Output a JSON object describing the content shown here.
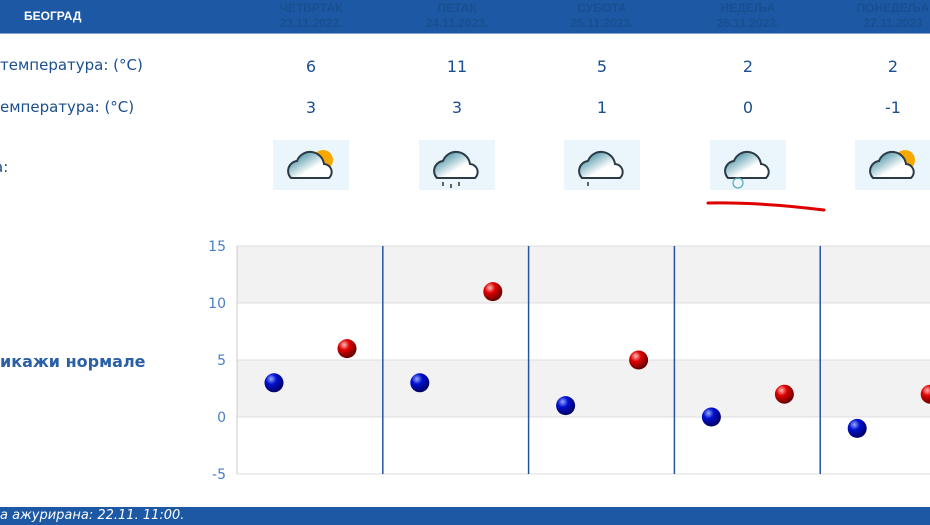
{
  "header": {
    "city": "БЕОГРАД",
    "days": [
      {
        "name": "ЧЕТВРТАК",
        "date": "23.11.2023.",
        "icon": "partly-cloudy-sun-icon"
      },
      {
        "name": "ПЕТАК",
        "date": "24.11.2023.",
        "icon": "cloud-rain-icon"
      },
      {
        "name": "СУБОТА",
        "date": "25.11.2023.",
        "icon": "cloud-light-rain-icon"
      },
      {
        "name": "НЕДЕЉА",
        "date": "26.11.2023.",
        "icon": "cloud-snow-icon"
      },
      {
        "name": "ПОНЕДЕЉА",
        "date": "27.11.2023",
        "icon": "partly-cloudy-sun-icon"
      }
    ]
  },
  "rows": {
    "max_label": "температура: (°C)",
    "min_label": "емпература: (°C)",
    "icon_label": "а:",
    "max": [
      "6",
      "11",
      "5",
      "2",
      "2"
    ],
    "min": [
      "3",
      "3",
      "1",
      "0",
      "-1"
    ]
  },
  "show_normals_link": "икажи нормале",
  "footer": "а ажурирана:  22.11. 11:00.",
  "chart_data": {
    "type": "scatter",
    "ylim": [
      -5,
      15
    ],
    "yticks": [
      "15",
      "10",
      "5",
      "0",
      "-5"
    ],
    "series": [
      {
        "color": "#0000cc",
        "values": [
          3,
          3,
          1,
          0,
          -1
        ]
      },
      {
        "color": "#dd0000",
        "values": [
          6,
          11,
          5,
          2,
          2
        ]
      }
    ]
  },
  "colors": {
    "header": "#1c58a3",
    "text": "#1a4f8f",
    "annotation": "#e00000"
  }
}
